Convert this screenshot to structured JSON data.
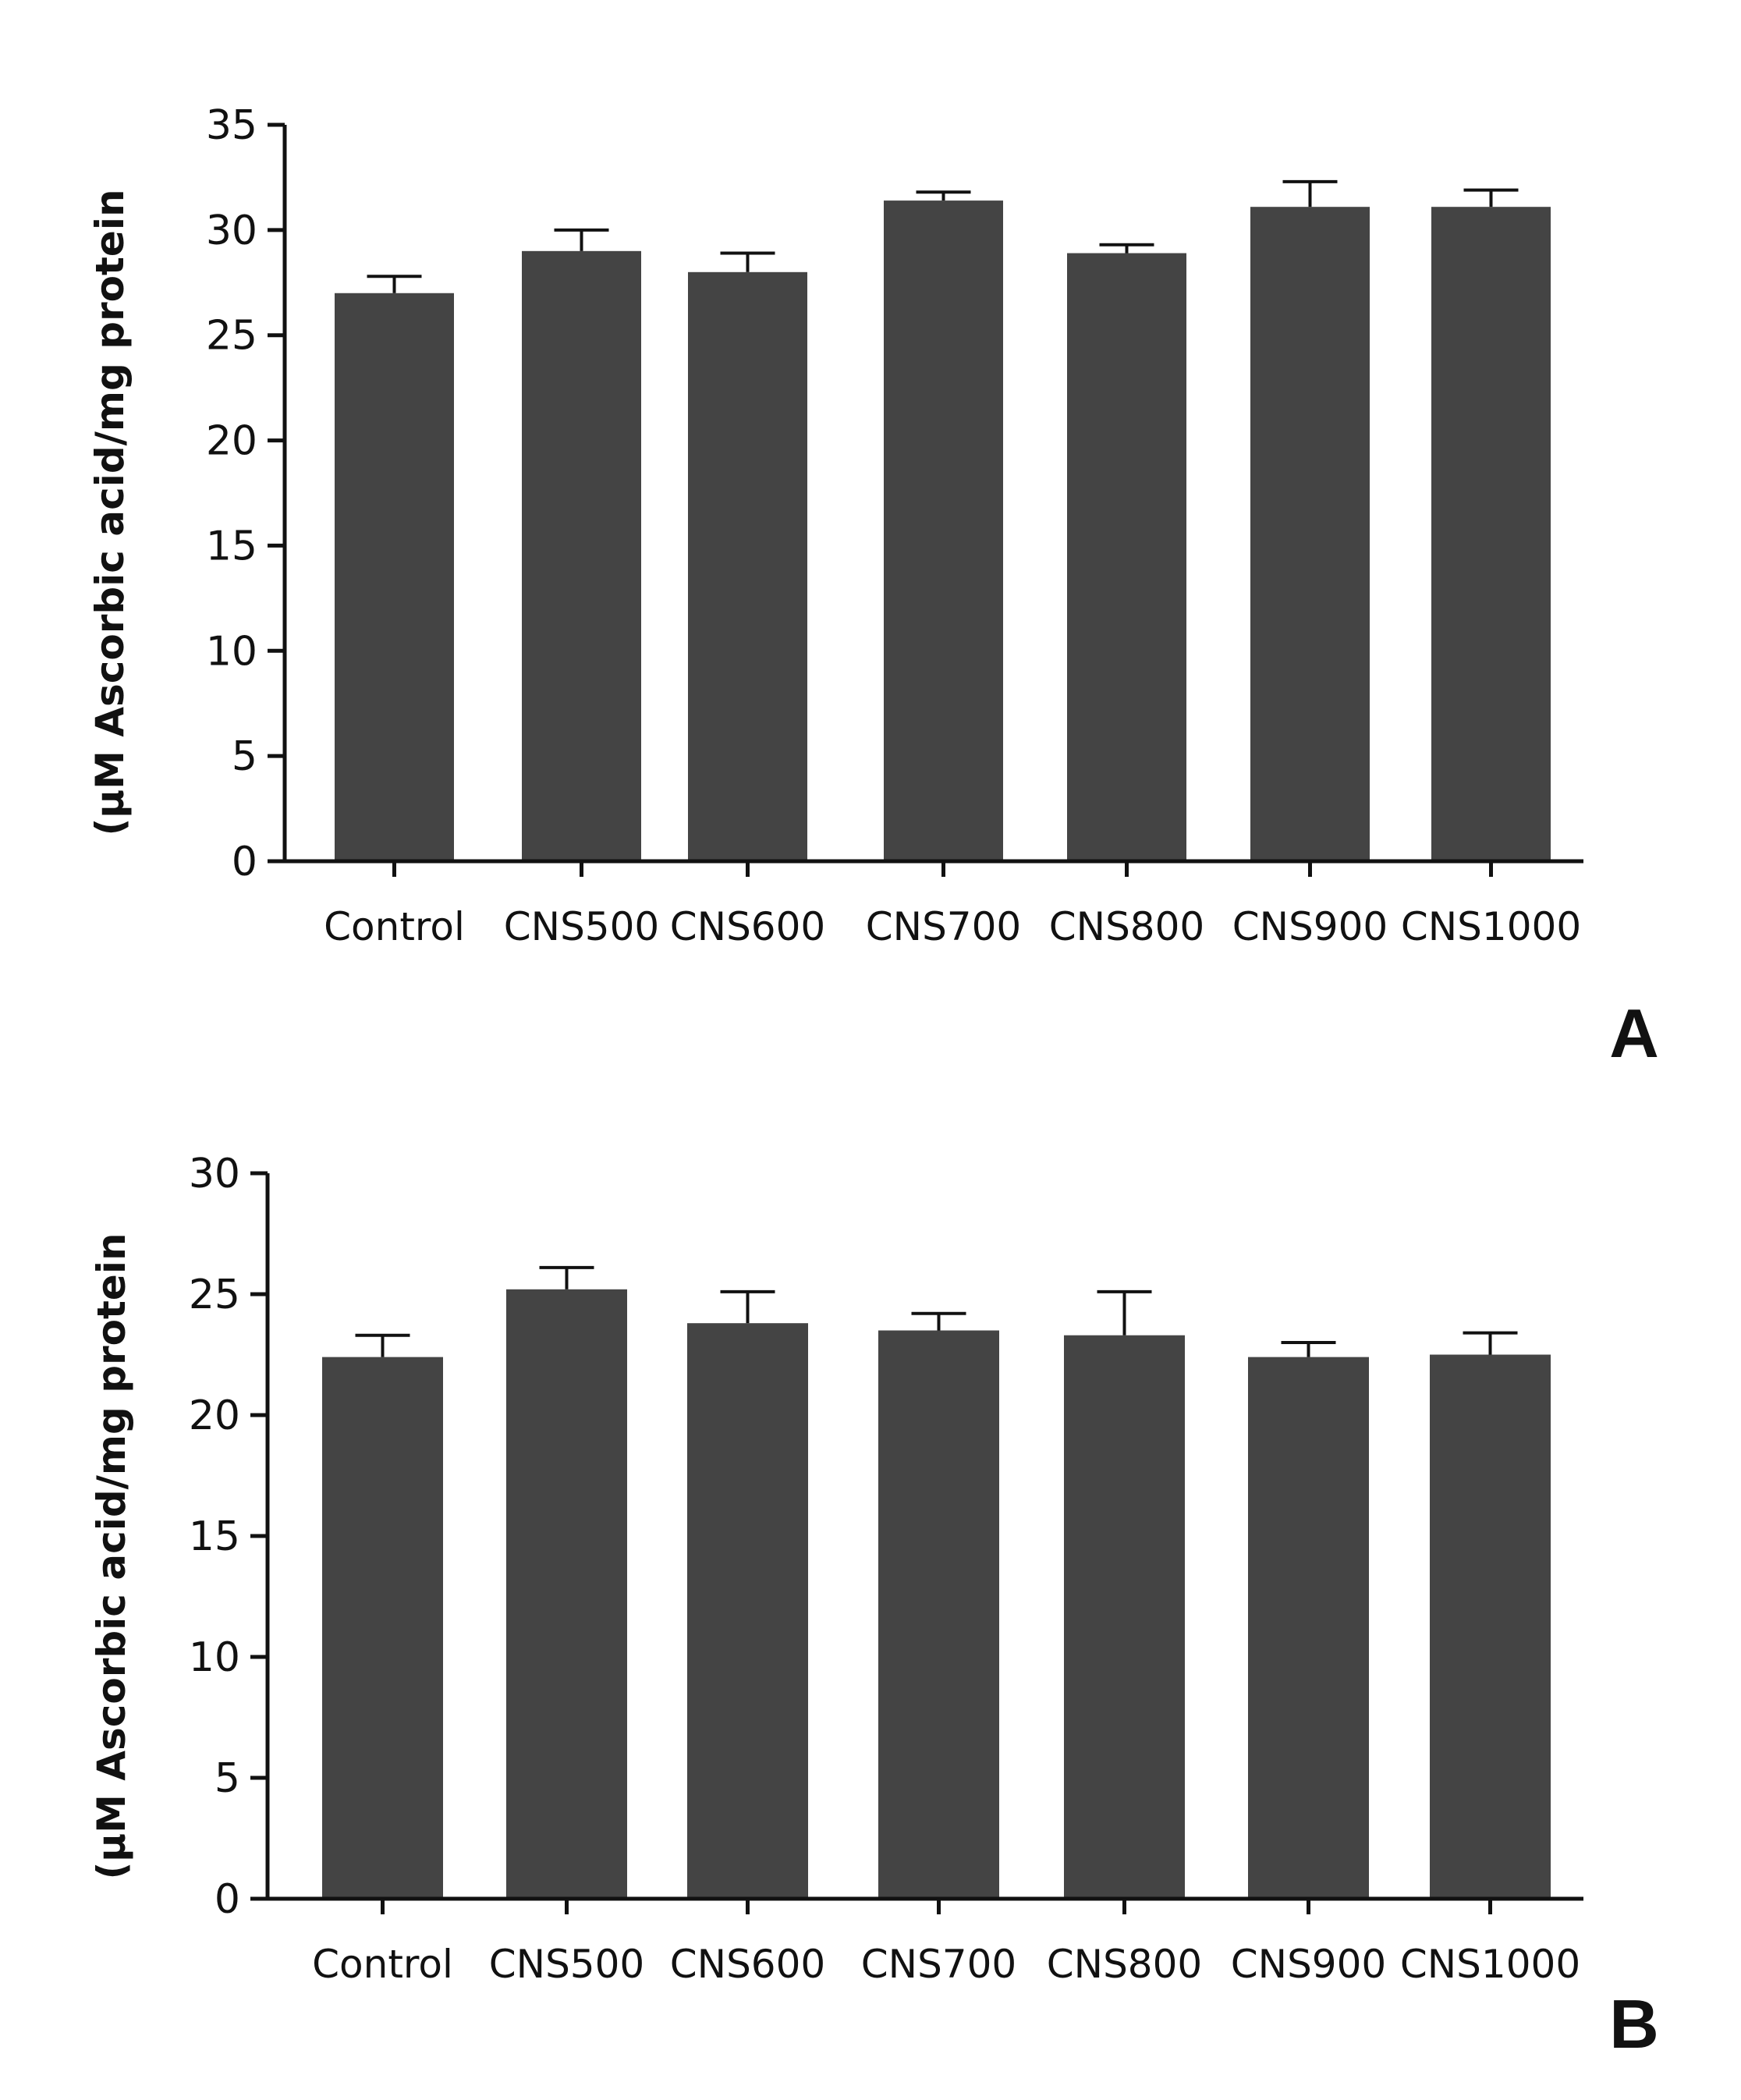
{
  "chart_data": [
    {
      "panel": "A",
      "type": "bar",
      "categories": [
        "Control",
        "CNS500",
        "CNS600",
        "CNS700",
        "CNS800",
        "CNS900",
        "CNS1000"
      ],
      "values": [
        27.0,
        29.0,
        28.0,
        31.4,
        28.9,
        31.1,
        31.1
      ],
      "errors": [
        0.8,
        1.0,
        0.9,
        0.4,
        0.4,
        1.2,
        0.8
      ],
      "ylabel": "(μM Ascorbic acid/mg protein",
      "xlabel": "",
      "ylim": [
        0,
        35
      ],
      "yticks": [
        0,
        5,
        10,
        15,
        20,
        25,
        30,
        35
      ],
      "bar_color": "#444444"
    },
    {
      "panel": "B",
      "type": "bar",
      "categories": [
        "Control",
        "CNS500",
        "CNS600",
        "CNS700",
        "CNS800",
        "CNS900",
        "CNS1000"
      ],
      "values": [
        22.4,
        25.2,
        23.8,
        23.5,
        23.3,
        22.4,
        22.5
      ],
      "errors": [
        0.9,
        0.9,
        1.3,
        0.7,
        1.8,
        0.6,
        0.9
      ],
      "ylabel": "(μM Ascorbic acid/mg protein",
      "xlabel": "",
      "ylim": [
        0,
        30
      ],
      "yticks": [
        0,
        5,
        10,
        15,
        20,
        25,
        30
      ],
      "bar_color": "#444444"
    }
  ]
}
